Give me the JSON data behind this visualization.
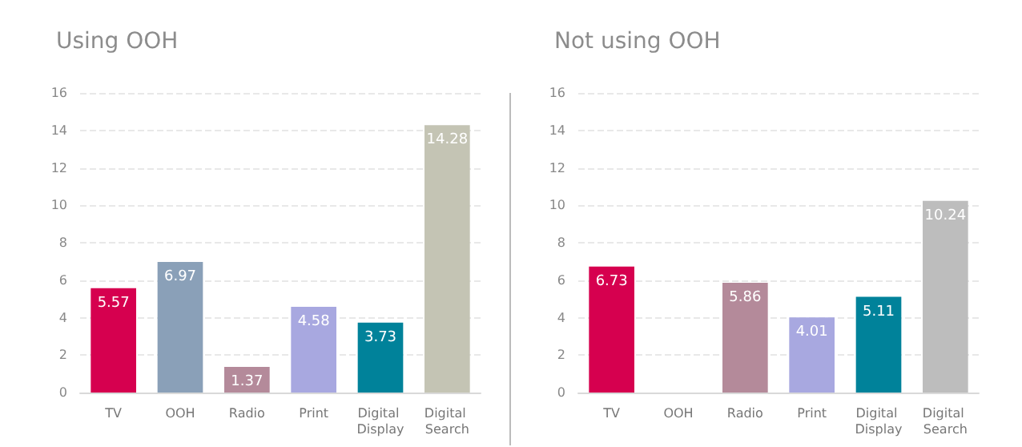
{
  "chart_data": [
    {
      "type": "bar",
      "title": "Using OOH",
      "categories": [
        "TV",
        "OOH",
        "Radio",
        "Print",
        "Digital Display",
        "Digital Search"
      ],
      "values": [
        5.57,
        6.97,
        1.37,
        4.58,
        3.73,
        14.28
      ],
      "colors": [
        "#d6004f",
        "#8aa0b8",
        "#b48a9a",
        "#a8a8e0",
        "#00829a",
        "#c4c4b4"
      ],
      "ylim": [
        0,
        16
      ],
      "yticks": [
        0,
        2,
        4,
        6,
        8,
        10,
        12,
        14,
        16
      ],
      "grid": "y",
      "data_labels": true
    },
    {
      "type": "bar",
      "title": "Not using OOH",
      "categories": [
        "TV",
        "OOH",
        "Radio",
        "Print",
        "Digital Display",
        "Digital Search"
      ],
      "values": [
        6.73,
        null,
        5.86,
        4.01,
        5.11,
        10.24
      ],
      "colors": [
        "#d6004f",
        "#8aa0b8",
        "#b48a9a",
        "#a8a8e0",
        "#00829a",
        "#bdbdbd"
      ],
      "ylim": [
        0,
        16
      ],
      "yticks": [
        0,
        2,
        4,
        6,
        8,
        10,
        12,
        14,
        16
      ],
      "grid": "y",
      "data_labels": true
    }
  ]
}
